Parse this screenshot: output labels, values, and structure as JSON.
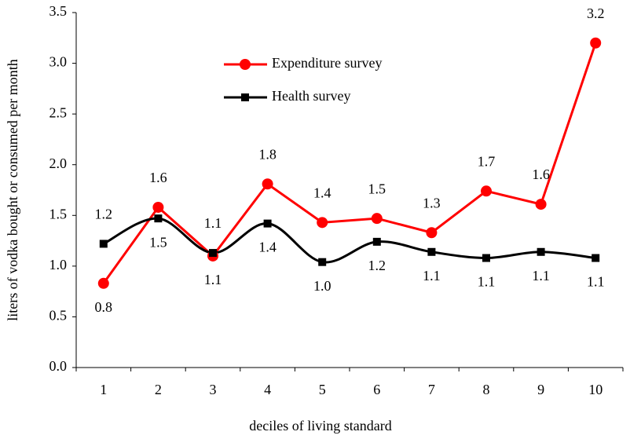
{
  "chart_data": {
    "type": "line",
    "x_label": "deciles of living standard",
    "y_label": "liters of vodka bought or consumed per month",
    "categories": [
      "1",
      "2",
      "3",
      "4",
      "5",
      "6",
      "7",
      "8",
      "9",
      "10"
    ],
    "series": [
      {
        "name": "Expenditure survey",
        "color": "#ff0000",
        "marker": "circle",
        "smooth": false,
        "values": [
          0.83,
          1.58,
          1.1,
          1.81,
          1.43,
          1.47,
          1.33,
          1.74,
          1.61,
          3.2
        ],
        "value_labels": [
          "0.8",
          "1.6",
          "1.1",
          "1.8",
          "1.4",
          "1.5",
          "1.3",
          "1.7",
          "1.6",
          "3.2"
        ]
      },
      {
        "name": "Health survey",
        "color": "#000000",
        "marker": "square",
        "smooth": true,
        "values": [
          1.22,
          1.47,
          1.13,
          1.42,
          1.04,
          1.24,
          1.14,
          1.08,
          1.14,
          1.08
        ],
        "value_labels": [
          "1.2",
          "1.5",
          "1.1",
          "1.4",
          "1.0",
          "1.2",
          "1.1",
          "1.1",
          "1.1",
          "1.1"
        ]
      }
    ],
    "ylim": [
      0,
      3.5
    ],
    "yticks": [
      {
        "value": 0,
        "label": "0.0"
      },
      {
        "value": 0.5,
        "label": "0.5"
      },
      {
        "value": 1,
        "label": "1.0"
      },
      {
        "value": 1.5,
        "label": "1.5"
      },
      {
        "value": 2,
        "label": "2.0"
      },
      {
        "value": 2.5,
        "label": "2.5"
      },
      {
        "value": 3,
        "label": "3.0"
      },
      {
        "value": 3.5,
        "label": "3.5"
      }
    ],
    "grid": false
  }
}
